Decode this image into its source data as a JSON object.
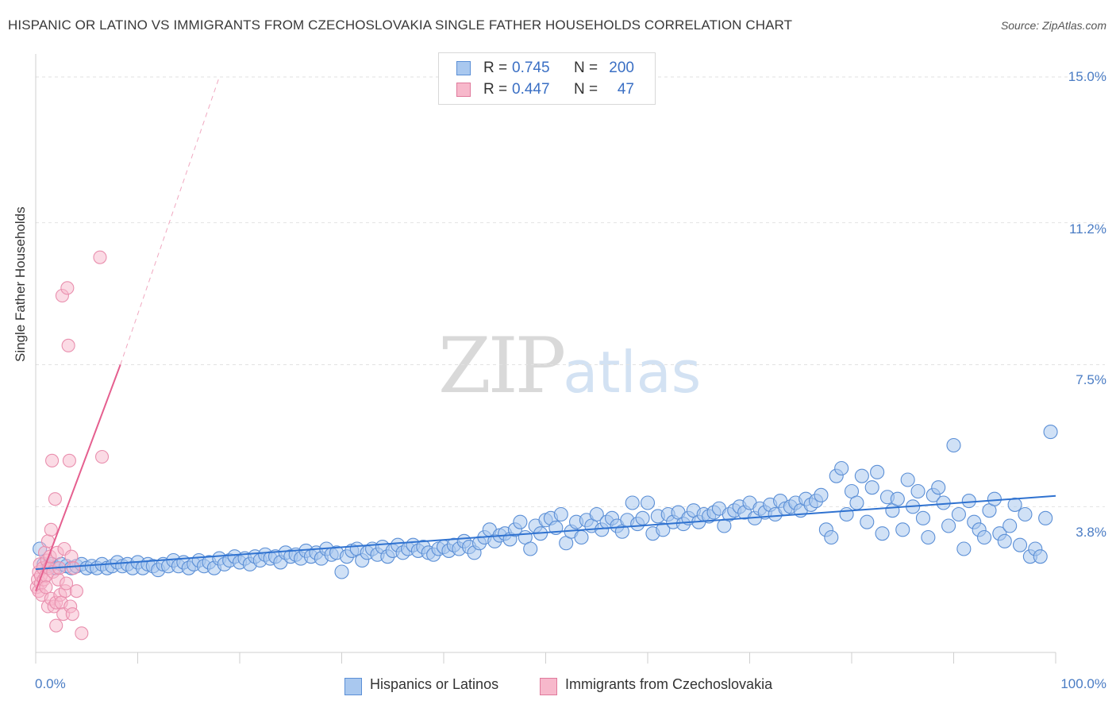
{
  "title": "HISPANIC OR LATINO VS IMMIGRANTS FROM CZECHOSLOVAKIA SINGLE FATHER HOUSEHOLDS CORRELATION CHART",
  "source": "Source: ZipAtlas.com",
  "watermark": {
    "zip": "ZIP",
    "atlas": "atlas"
  },
  "stats": {
    "rows": [
      {
        "r_label": "R =",
        "r_value": "0.745",
        "n_label": "N =",
        "n_value": "200",
        "color": "#a9c8ef",
        "border": "#5b8fd6"
      },
      {
        "r_label": "R =",
        "r_value": "0.447",
        "n_label": "N =",
        "n_value": "47",
        "color": "#f7b8cb",
        "border": "#e07a9c"
      }
    ]
  },
  "legend": [
    {
      "label": "Hispanics or Latinos",
      "color": "#a9c8ef",
      "border": "#5b8fd6"
    },
    {
      "label": "Immigrants from Czechoslovakia",
      "color": "#f7b8cb",
      "border": "#e07a9c"
    }
  ],
  "colors": {
    "blue": "#4a86d8",
    "blue_line": "#2f72d0",
    "pink": "#f08fb0",
    "pink_line": "#e55f8f",
    "grid": "#e2e2e2",
    "axis_text": "#4a7cc4"
  },
  "chart_data": {
    "type": "scatter",
    "title": "HISPANIC OR LATINO VS IMMIGRANTS FROM CZECHOSLOVAKIA SINGLE FATHER HOUSEHOLDS CORRELATION CHART",
    "xlabel": "",
    "ylabel": "Single Father Households",
    "xlim": [
      0,
      100
    ],
    "ylim": [
      0.0,
      15.0
    ],
    "x_tick_labels": [
      "0.0%",
      "100.0%"
    ],
    "y_ticks": [
      3.8,
      7.5,
      11.2,
      15.0
    ],
    "y_tick_labels": [
      "3.8%",
      "7.5%",
      "11.2%",
      "15.0%"
    ],
    "grid": true,
    "legend_position": "bottom",
    "series": [
      {
        "name": "Hispanics or Latinos",
        "color": "#4a86d8",
        "trendline": {
          "x": [
            0,
            100
          ],
          "y": [
            2.17,
            4.08
          ]
        },
        "points": [
          [
            0.4,
            2.7
          ],
          [
            0.8,
            2.3
          ],
          [
            1.2,
            2.25
          ],
          [
            1.6,
            2.3
          ],
          [
            2.0,
            2.2
          ],
          [
            2.5,
            2.3
          ],
          [
            3.0,
            2.25
          ],
          [
            3.5,
            2.2
          ],
          [
            4.0,
            2.25
          ],
          [
            4.5,
            2.3
          ],
          [
            5.0,
            2.2
          ],
          [
            5.5,
            2.25
          ],
          [
            6.0,
            2.2
          ],
          [
            6.5,
            2.3
          ],
          [
            7.0,
            2.2
          ],
          [
            7.5,
            2.25
          ],
          [
            8.0,
            2.35
          ],
          [
            8.5,
            2.25
          ],
          [
            9.0,
            2.3
          ],
          [
            9.5,
            2.2
          ],
          [
            10.0,
            2.35
          ],
          [
            10.5,
            2.2
          ],
          [
            11.0,
            2.3
          ],
          [
            11.5,
            2.25
          ],
          [
            12.0,
            2.15
          ],
          [
            12.5,
            2.3
          ],
          [
            13.0,
            2.25
          ],
          [
            13.5,
            2.4
          ],
          [
            14.0,
            2.25
          ],
          [
            14.5,
            2.35
          ],
          [
            15.0,
            2.2
          ],
          [
            15.5,
            2.3
          ],
          [
            16.0,
            2.4
          ],
          [
            16.5,
            2.25
          ],
          [
            17.0,
            2.35
          ],
          [
            17.5,
            2.2
          ],
          [
            18.0,
            2.45
          ],
          [
            18.5,
            2.3
          ],
          [
            19.0,
            2.4
          ],
          [
            19.5,
            2.5
          ],
          [
            20.0,
            2.35
          ],
          [
            20.5,
            2.45
          ],
          [
            21.0,
            2.3
          ],
          [
            21.5,
            2.5
          ],
          [
            22.0,
            2.4
          ],
          [
            22.5,
            2.55
          ],
          [
            23.0,
            2.45
          ],
          [
            23.5,
            2.5
          ],
          [
            24.0,
            2.35
          ],
          [
            24.5,
            2.6
          ],
          [
            25.0,
            2.5
          ],
          [
            25.5,
            2.55
          ],
          [
            26.0,
            2.45
          ],
          [
            26.5,
            2.65
          ],
          [
            27.0,
            2.5
          ],
          [
            27.5,
            2.6
          ],
          [
            28.0,
            2.45
          ],
          [
            28.5,
            2.7
          ],
          [
            29.0,
            2.55
          ],
          [
            29.5,
            2.6
          ],
          [
            30.0,
            2.1
          ],
          [
            30.5,
            2.5
          ],
          [
            31.0,
            2.65
          ],
          [
            31.5,
            2.7
          ],
          [
            32.0,
            2.4
          ],
          [
            32.5,
            2.6
          ],
          [
            33.0,
            2.7
          ],
          [
            33.5,
            2.55
          ],
          [
            34.0,
            2.75
          ],
          [
            34.5,
            2.5
          ],
          [
            35.0,
            2.65
          ],
          [
            35.5,
            2.8
          ],
          [
            36.0,
            2.6
          ],
          [
            36.5,
            2.7
          ],
          [
            37.0,
            2.8
          ],
          [
            37.5,
            2.65
          ],
          [
            38.0,
            2.75
          ],
          [
            38.5,
            2.6
          ],
          [
            39.0,
            2.55
          ],
          [
            39.5,
            2.7
          ],
          [
            40.0,
            2.75
          ],
          [
            40.5,
            2.65
          ],
          [
            41.0,
            2.8
          ],
          [
            41.5,
            2.7
          ],
          [
            42.0,
            2.9
          ],
          [
            42.5,
            2.75
          ],
          [
            43.0,
            2.6
          ],
          [
            43.5,
            2.85
          ],
          [
            44.0,
            3.0
          ],
          [
            44.5,
            3.2
          ],
          [
            45.0,
            2.9
          ],
          [
            45.5,
            3.05
          ],
          [
            46.0,
            3.1
          ],
          [
            46.5,
            2.95
          ],
          [
            47.0,
            3.2
          ],
          [
            47.5,
            3.4
          ],
          [
            48.0,
            3.0
          ],
          [
            48.5,
            2.7
          ],
          [
            49.0,
            3.3
          ],
          [
            49.5,
            3.1
          ],
          [
            50.0,
            3.45
          ],
          [
            50.5,
            3.5
          ],
          [
            51.0,
            3.25
          ],
          [
            51.5,
            3.6
          ],
          [
            52.0,
            2.85
          ],
          [
            52.5,
            3.15
          ],
          [
            53.0,
            3.4
          ],
          [
            53.5,
            3.0
          ],
          [
            54.0,
            3.45
          ],
          [
            54.5,
            3.3
          ],
          [
            55.0,
            3.6
          ],
          [
            55.5,
            3.2
          ],
          [
            56.0,
            3.4
          ],
          [
            56.5,
            3.5
          ],
          [
            57.0,
            3.3
          ],
          [
            57.5,
            3.15
          ],
          [
            58.0,
            3.45
          ],
          [
            58.5,
            3.9
          ],
          [
            59.0,
            3.35
          ],
          [
            59.5,
            3.5
          ],
          [
            60.0,
            3.9
          ],
          [
            60.5,
            3.1
          ],
          [
            61.0,
            3.55
          ],
          [
            61.5,
            3.2
          ],
          [
            62.0,
            3.6
          ],
          [
            62.5,
            3.4
          ],
          [
            63.0,
            3.65
          ],
          [
            63.5,
            3.35
          ],
          [
            64.0,
            3.5
          ],
          [
            64.5,
            3.7
          ],
          [
            65.0,
            3.4
          ],
          [
            65.5,
            3.6
          ],
          [
            66.0,
            3.55
          ],
          [
            66.5,
            3.65
          ],
          [
            67.0,
            3.75
          ],
          [
            67.5,
            3.3
          ],
          [
            68.0,
            3.6
          ],
          [
            68.5,
            3.7
          ],
          [
            69.0,
            3.8
          ],
          [
            69.5,
            3.65
          ],
          [
            70.0,
            3.9
          ],
          [
            70.5,
            3.5
          ],
          [
            71.0,
            3.75
          ],
          [
            71.5,
            3.65
          ],
          [
            72.0,
            3.85
          ],
          [
            72.5,
            3.6
          ],
          [
            73.0,
            3.95
          ],
          [
            73.5,
            3.75
          ],
          [
            74.0,
            3.8
          ],
          [
            74.5,
            3.9
          ],
          [
            75.0,
            3.7
          ],
          [
            75.5,
            4.0
          ],
          [
            76.0,
            3.85
          ],
          [
            76.5,
            3.95
          ],
          [
            77.0,
            4.1
          ],
          [
            77.5,
            3.2
          ],
          [
            78.0,
            3.0
          ],
          [
            78.5,
            4.6
          ],
          [
            79.0,
            4.8
          ],
          [
            79.5,
            3.6
          ],
          [
            80.0,
            4.2
          ],
          [
            80.5,
            3.9
          ],
          [
            81.0,
            4.6
          ],
          [
            81.5,
            3.4
          ],
          [
            82.0,
            4.3
          ],
          [
            82.5,
            4.7
          ],
          [
            83.0,
            3.1
          ],
          [
            83.5,
            4.05
          ],
          [
            84.0,
            3.7
          ],
          [
            84.5,
            4.0
          ],
          [
            85.0,
            3.2
          ],
          [
            85.5,
            4.5
          ],
          [
            86.0,
            3.8
          ],
          [
            86.5,
            4.2
          ],
          [
            87.0,
            3.5
          ],
          [
            87.5,
            3.0
          ],
          [
            88.0,
            4.1
          ],
          [
            88.5,
            4.3
          ],
          [
            89.0,
            3.9
          ],
          [
            89.5,
            3.3
          ],
          [
            90.0,
            5.4
          ],
          [
            90.5,
            3.6
          ],
          [
            91.0,
            2.7
          ],
          [
            91.5,
            3.95
          ],
          [
            92.0,
            3.4
          ],
          [
            92.5,
            3.2
          ],
          [
            93.0,
            3.0
          ],
          [
            93.5,
            3.7
          ],
          [
            94.0,
            4.0
          ],
          [
            94.5,
            3.1
          ],
          [
            95.0,
            2.9
          ],
          [
            95.5,
            3.3
          ],
          [
            96.0,
            3.85
          ],
          [
            96.5,
            2.8
          ],
          [
            97.0,
            3.6
          ],
          [
            97.5,
            2.5
          ],
          [
            98.0,
            2.7
          ],
          [
            98.5,
            2.5
          ],
          [
            99.0,
            3.5
          ],
          [
            99.5,
            5.75
          ]
        ]
      },
      {
        "name": "Immigrants from Czechoslovakia",
        "color": "#f08fb0",
        "trendline": {
          "x": [
            0,
            8.3
          ],
          "y": [
            1.6,
            7.5
          ]
        },
        "trendline_dashed": {
          "x": [
            8.3,
            18.0
          ],
          "y": [
            7.5,
            15.0
          ]
        },
        "points": [
          [
            0.1,
            1.7
          ],
          [
            0.2,
            1.9
          ],
          [
            0.3,
            2.1
          ],
          [
            0.3,
            1.6
          ],
          [
            0.4,
            2.3
          ],
          [
            0.5,
            1.8
          ],
          [
            0.5,
            2.0
          ],
          [
            0.6,
            1.5
          ],
          [
            0.7,
            2.2
          ],
          [
            0.8,
            1.9
          ],
          [
            0.9,
            2.6
          ],
          [
            1.0,
            2.0
          ],
          [
            1.0,
            1.7
          ],
          [
            1.1,
            2.4
          ],
          [
            1.2,
            2.9
          ],
          [
            1.2,
            1.2
          ],
          [
            1.3,
            2.2
          ],
          [
            1.4,
            2.5
          ],
          [
            1.5,
            3.2
          ],
          [
            1.5,
            1.4
          ],
          [
            1.6,
            5.0
          ],
          [
            1.7,
            2.1
          ],
          [
            1.8,
            1.2
          ],
          [
            1.9,
            4.0
          ],
          [
            2.0,
            0.7
          ],
          [
            2.0,
            1.3
          ],
          [
            2.1,
            2.6
          ],
          [
            2.2,
            1.9
          ],
          [
            2.3,
            2.2
          ],
          [
            2.4,
            1.5
          ],
          [
            2.5,
            1.3
          ],
          [
            2.6,
            9.3
          ],
          [
            2.7,
            1.0
          ],
          [
            2.8,
            2.7
          ],
          [
            2.9,
            1.6
          ],
          [
            3.0,
            1.8
          ],
          [
            3.1,
            9.5
          ],
          [
            3.2,
            8.0
          ],
          [
            3.3,
            5.0
          ],
          [
            3.4,
            1.2
          ],
          [
            3.5,
            2.5
          ],
          [
            3.6,
            1.0
          ],
          [
            3.7,
            2.2
          ],
          [
            4.0,
            1.6
          ],
          [
            4.5,
            0.5
          ],
          [
            6.3,
            10.3
          ],
          [
            6.5,
            5.1
          ]
        ]
      }
    ]
  }
}
